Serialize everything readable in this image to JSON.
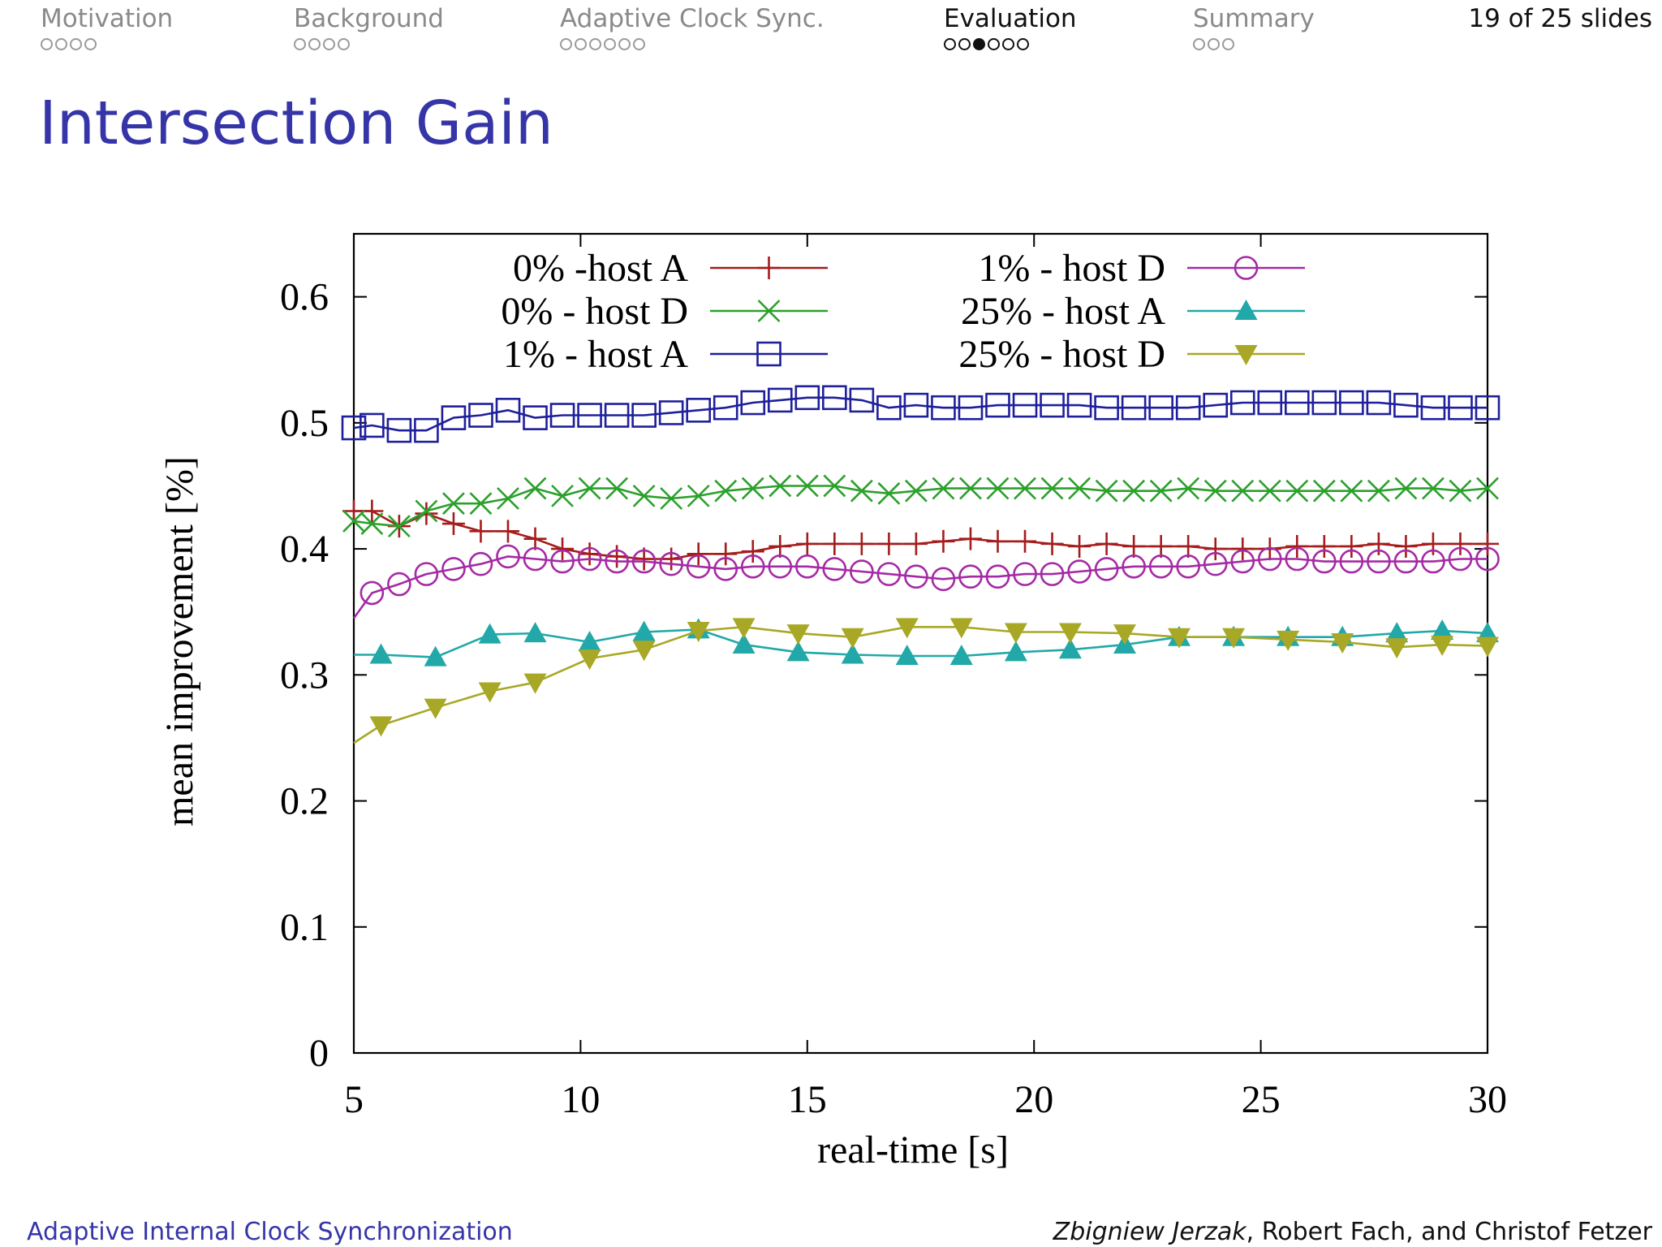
{
  "navigation": {
    "sections": [
      {
        "label": "Motivation",
        "dots": 4,
        "filled": -1,
        "active": false
      },
      {
        "label": "Background",
        "dots": 4,
        "filled": -1,
        "active": false
      },
      {
        "label": "Adaptive Clock Sync.",
        "dots": 6,
        "filled": -1,
        "active": false
      },
      {
        "label": "Evaluation",
        "dots": 6,
        "filled": 2,
        "active": true
      },
      {
        "label": "Summary",
        "dots": 3,
        "filled": -1,
        "active": false
      }
    ],
    "slide_counter": "19 of 25 slides"
  },
  "slide": {
    "title": "Intersection Gain"
  },
  "footer": {
    "left": "Adaptive Internal Clock Synchronization",
    "right_author1": "Zbigniew Jerzak",
    "right_rest": ", Robert Fach, and Christof Fetzer"
  },
  "chart_data": {
    "type": "line",
    "xlabel": "real-time [s]",
    "ylabel": "mean improvement [%]",
    "xlim": [
      5,
      30
    ],
    "ylim": [
      0,
      0.65
    ],
    "xticks": [
      5,
      10,
      15,
      20,
      25,
      30
    ],
    "xtick_labels": [
      "5",
      "10",
      "15",
      "20",
      "25",
      "30"
    ],
    "yticks": [
      0,
      0.1,
      0.2,
      0.3,
      0.4,
      0.5,
      0.6
    ],
    "ytick_labels": [
      "0",
      "0.1",
      "0.2",
      "0.3",
      "0.4",
      "0.5",
      "0.6"
    ],
    "grid": false,
    "legend_position": "top",
    "series": [
      {
        "name": "0% -host A",
        "color": "#a51c1c",
        "marker": "plus",
        "x": [
          5.0,
          5.4,
          6.0,
          6.6,
          7.2,
          7.8,
          8.4,
          9.0,
          9.6,
          10.2,
          10.8,
          11.4,
          12.0,
          12.6,
          13.2,
          13.8,
          14.4,
          15.0,
          15.6,
          16.2,
          16.8,
          17.4,
          18.0,
          18.6,
          19.2,
          19.8,
          20.4,
          21.0,
          21.6,
          22.2,
          22.8,
          23.4,
          24.0,
          24.6,
          25.2,
          25.8,
          26.4,
          27.0,
          27.6,
          28.2,
          28.8,
          29.4,
          30.0
        ],
        "y": [
          0.43,
          0.43,
          0.418,
          0.428,
          0.42,
          0.414,
          0.414,
          0.408,
          0.4,
          0.396,
          0.394,
          0.392,
          0.392,
          0.396,
          0.396,
          0.398,
          0.402,
          0.404,
          0.404,
          0.404,
          0.404,
          0.404,
          0.406,
          0.408,
          0.406,
          0.406,
          0.404,
          0.402,
          0.404,
          0.402,
          0.402,
          0.402,
          0.4,
          0.4,
          0.4,
          0.402,
          0.402,
          0.402,
          0.404,
          0.402,
          0.404,
          0.404,
          0.404
        ]
      },
      {
        "name": "0% - host D",
        "color": "#2ca02c",
        "marker": "x",
        "x": [
          5.0,
          5.4,
          6.0,
          6.6,
          7.2,
          7.8,
          8.4,
          9.0,
          9.6,
          10.2,
          10.8,
          11.4,
          12.0,
          12.6,
          13.2,
          13.8,
          14.4,
          15.0,
          15.6,
          16.2,
          16.8,
          17.4,
          18.0,
          18.6,
          19.2,
          19.8,
          20.4,
          21.0,
          21.6,
          22.2,
          22.8,
          23.4,
          24.0,
          24.6,
          25.2,
          25.8,
          26.4,
          27.0,
          27.6,
          28.2,
          28.8,
          29.4,
          30.0
        ],
        "y": [
          0.422,
          0.42,
          0.418,
          0.43,
          0.436,
          0.436,
          0.44,
          0.448,
          0.442,
          0.448,
          0.448,
          0.442,
          0.44,
          0.442,
          0.446,
          0.448,
          0.45,
          0.45,
          0.45,
          0.446,
          0.444,
          0.446,
          0.448,
          0.448,
          0.448,
          0.448,
          0.448,
          0.448,
          0.446,
          0.446,
          0.446,
          0.448,
          0.446,
          0.446,
          0.446,
          0.446,
          0.446,
          0.446,
          0.446,
          0.448,
          0.448,
          0.446,
          0.448
        ]
      },
      {
        "name": "1% - host A",
        "color": "#1f1f9c",
        "marker": "square",
        "x": [
          5.0,
          5.4,
          6.0,
          6.6,
          7.2,
          7.8,
          8.4,
          9.0,
          9.6,
          10.2,
          10.8,
          11.4,
          12.0,
          12.6,
          13.2,
          13.8,
          14.4,
          15.0,
          15.6,
          16.2,
          16.8,
          17.4,
          18.0,
          18.6,
          19.2,
          19.8,
          20.4,
          21.0,
          21.6,
          22.2,
          22.8,
          23.4,
          24.0,
          24.6,
          25.2,
          25.8,
          26.4,
          27.0,
          27.6,
          28.2,
          28.8,
          29.4,
          30.0
        ],
        "y": [
          0.496,
          0.498,
          0.494,
          0.494,
          0.504,
          0.506,
          0.51,
          0.504,
          0.506,
          0.506,
          0.506,
          0.506,
          0.508,
          0.51,
          0.512,
          0.516,
          0.518,
          0.52,
          0.52,
          0.518,
          0.512,
          0.514,
          0.512,
          0.512,
          0.514,
          0.514,
          0.514,
          0.514,
          0.512,
          0.512,
          0.512,
          0.512,
          0.514,
          0.516,
          0.516,
          0.516,
          0.516,
          0.516,
          0.516,
          0.514,
          0.512,
          0.512,
          0.512
        ]
      },
      {
        "name": "1% - host D",
        "color": "#a52aa5",
        "marker": "circle",
        "x": [
          5.0,
          5.4,
          6.0,
          6.6,
          7.2,
          7.8,
          8.4,
          9.0,
          9.6,
          10.2,
          10.8,
          11.4,
          12.0,
          12.6,
          13.2,
          13.8,
          14.4,
          15.0,
          15.6,
          16.2,
          16.8,
          17.4,
          18.0,
          18.6,
          19.2,
          19.8,
          20.4,
          21.0,
          21.6,
          22.2,
          22.8,
          23.4,
          24.0,
          24.6,
          25.2,
          25.8,
          26.4,
          27.0,
          27.6,
          28.2,
          28.8,
          29.4,
          30.0
        ],
        "y": [
          0.345,
          0.365,
          0.372,
          0.38,
          0.384,
          0.388,
          0.394,
          0.392,
          0.39,
          0.392,
          0.39,
          0.39,
          0.388,
          0.386,
          0.384,
          0.386,
          0.386,
          0.386,
          0.384,
          0.382,
          0.38,
          0.378,
          0.376,
          0.378,
          0.378,
          0.38,
          0.38,
          0.382,
          0.384,
          0.386,
          0.386,
          0.386,
          0.388,
          0.39,
          0.392,
          0.392,
          0.39,
          0.39,
          0.39,
          0.39,
          0.39,
          0.392,
          0.392
        ]
      },
      {
        "name": "25% - host A",
        "color": "#22a8a8",
        "marker": "triangle-up",
        "x": [
          5.0,
          5.6,
          6.8,
          8.0,
          9.0,
          10.2,
          11.4,
          12.6,
          13.6,
          14.8,
          16.0,
          17.2,
          18.4,
          19.6,
          20.8,
          22.0,
          23.2,
          24.4,
          25.6,
          26.8,
          28.0,
          29.0,
          30.0
        ],
        "y": [
          0.316,
          0.316,
          0.314,
          0.332,
          0.333,
          0.326,
          0.334,
          0.336,
          0.324,
          0.318,
          0.316,
          0.315,
          0.315,
          0.318,
          0.32,
          0.324,
          0.33,
          0.33,
          0.33,
          0.33,
          0.333,
          0.335,
          0.333
        ]
      },
      {
        "name": "25% - host D",
        "color": "#a8a826",
        "marker": "triangle-down",
        "x": [
          5.0,
          5.6,
          6.8,
          8.0,
          9.0,
          10.2,
          11.4,
          12.6,
          13.6,
          14.8,
          16.0,
          17.2,
          18.4,
          19.6,
          20.8,
          22.0,
          23.2,
          24.4,
          25.6,
          26.8,
          28.0,
          29.0,
          30.0
        ],
        "y": [
          0.246,
          0.26,
          0.274,
          0.287,
          0.294,
          0.313,
          0.32,
          0.335,
          0.338,
          0.333,
          0.33,
          0.338,
          0.338,
          0.334,
          0.334,
          0.333,
          0.33,
          0.33,
          0.328,
          0.326,
          0.322,
          0.324,
          0.323
        ]
      }
    ]
  }
}
